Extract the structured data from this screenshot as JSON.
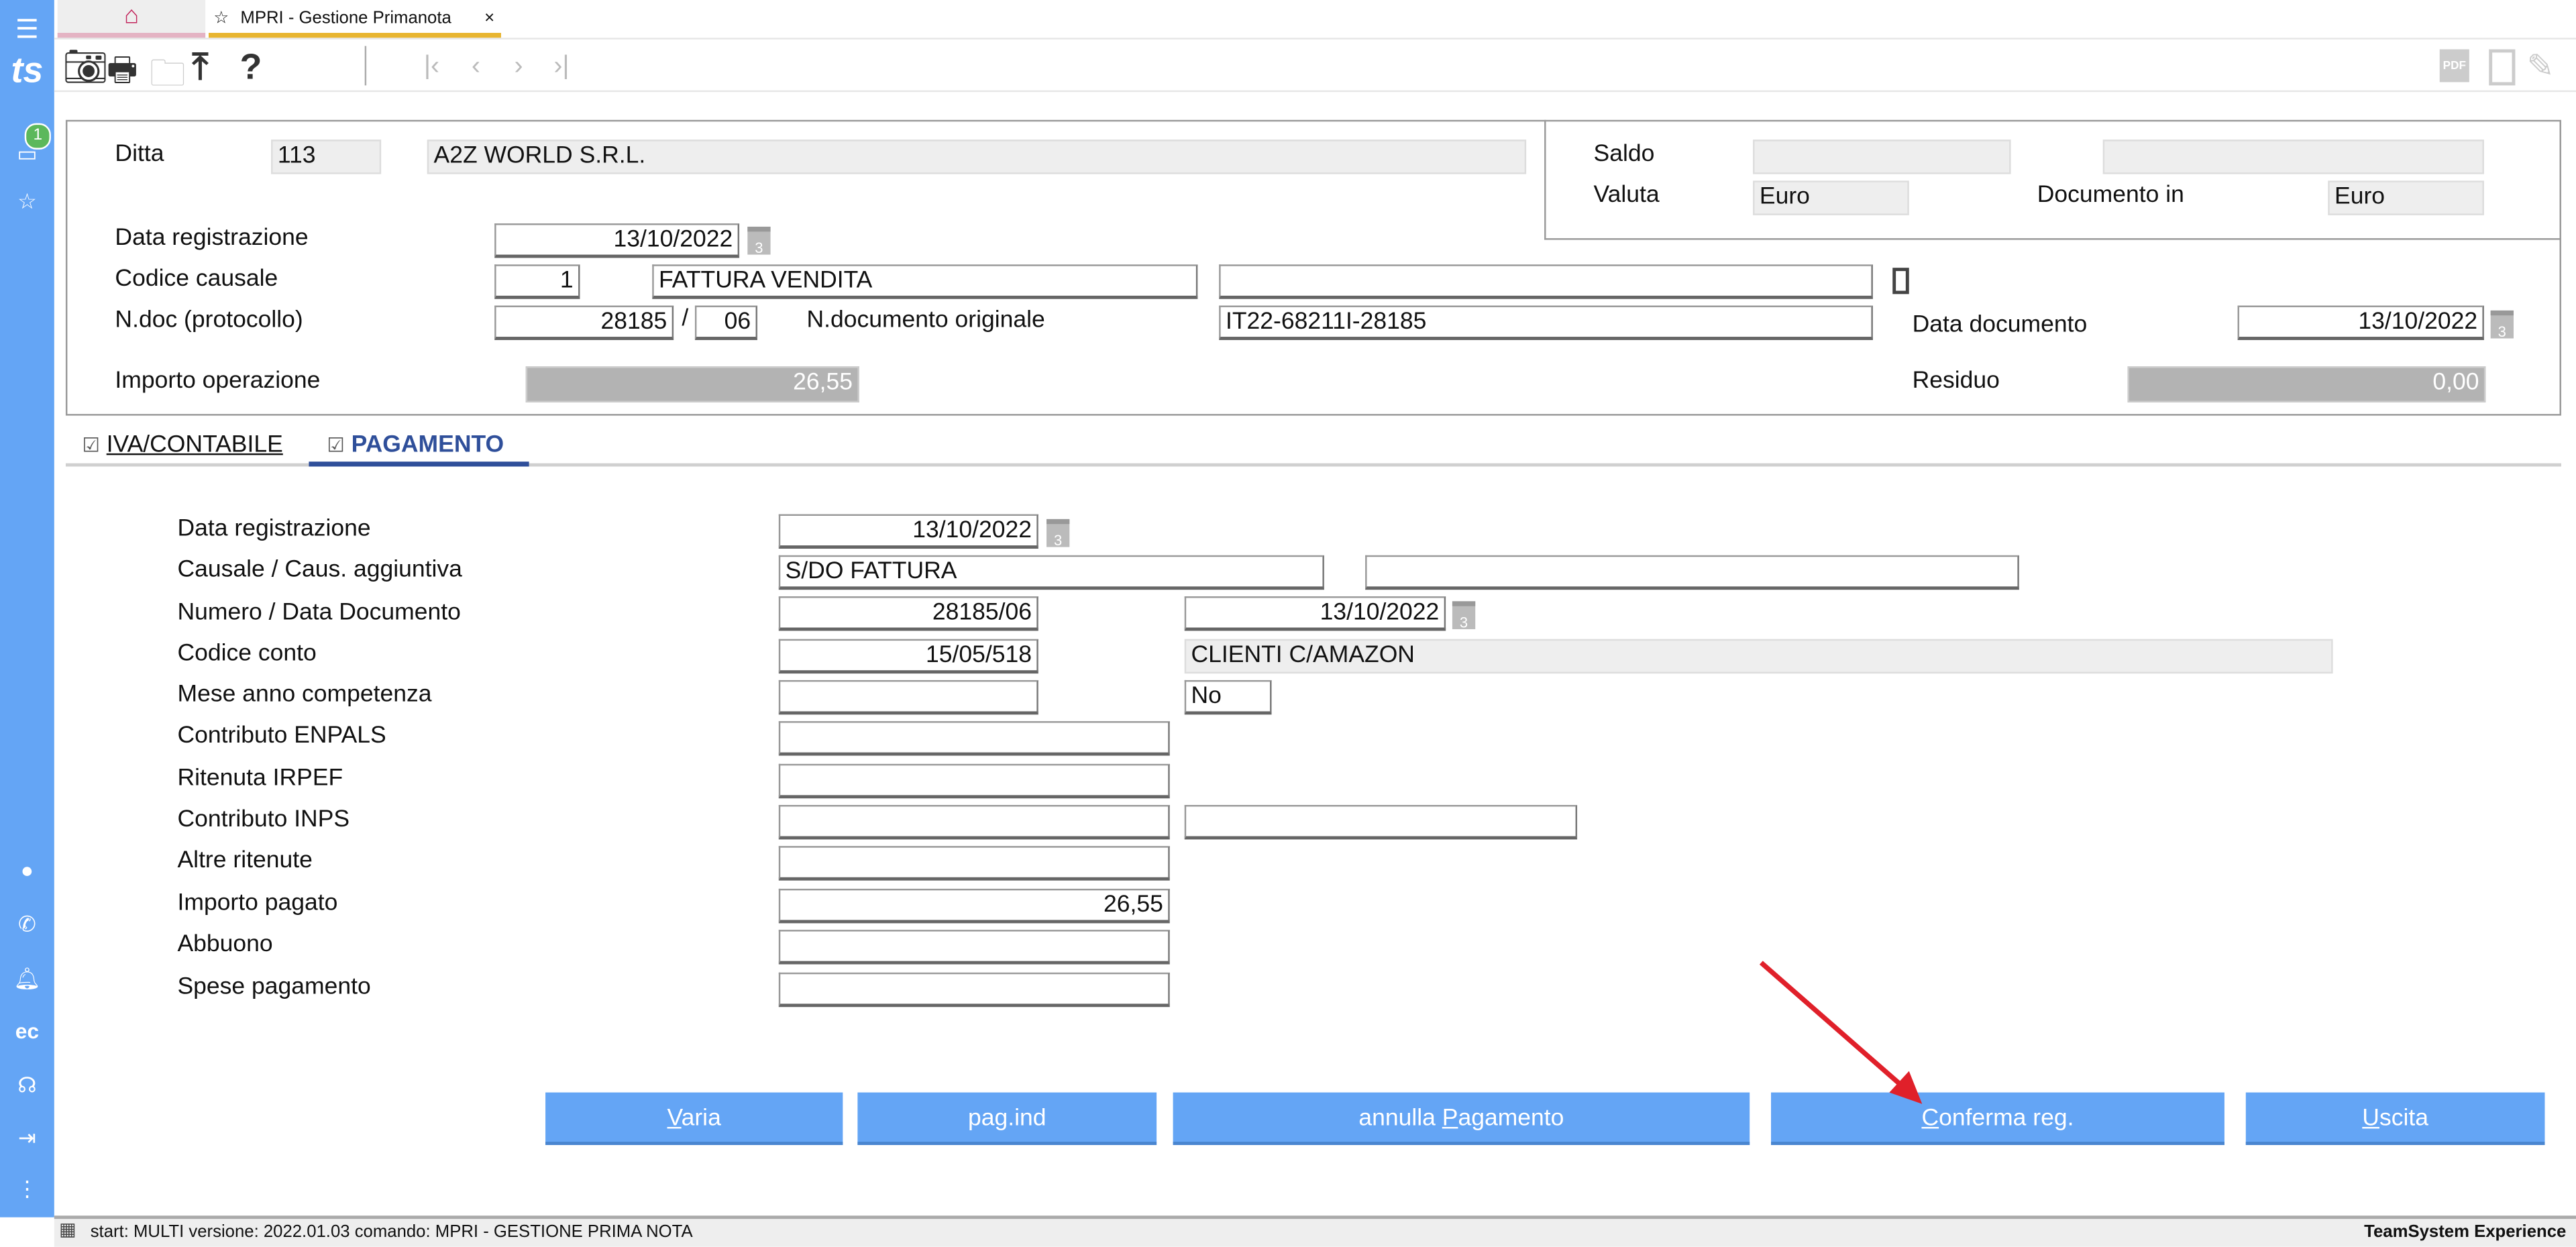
{
  "tabs": {
    "home_icon": "home-icon",
    "active": "MPRI - Gestione Primanota",
    "close": "×"
  },
  "sidebar": {
    "badge": "1",
    "icons": [
      "menu-icon",
      "ts-logo",
      "folder-icon",
      "star-icon",
      "user-icon",
      "phone-icon",
      "bell-icon",
      "ec-icon",
      "headset-icon",
      "logout-icon",
      "more-icon"
    ]
  },
  "header": {
    "ditta_label": "Ditta",
    "ditta_code": "113",
    "ditta_name": "A2Z WORLD S.R.L.",
    "saldo_label": "Saldo",
    "valuta_label": "Valuta",
    "valuta": "Euro",
    "documento_in_label": "Documento in",
    "documento_in": "Euro",
    "data_reg_label": "Data registrazione",
    "data_reg": "13/10/2022",
    "causale_label": "Codice causale",
    "causale_code": "1",
    "causale_desc": "FATTURA VENDITA",
    "ndoc_label": "N.doc (protocollo)",
    "ndoc": "28185",
    "slash": "/",
    "ndoc_suffix": "06",
    "ndoc_orig_label": "N.documento originale",
    "ndoc_orig": "IT22-68211I-28185",
    "data_doc_label": "Data documento",
    "data_doc": "13/10/2022",
    "importo_label": "Importo operazione",
    "importo": "26,55",
    "residuo_label": "Residuo",
    "residuo": "0,00",
    "cal_day": "3"
  },
  "section_tabs": [
    {
      "label": "IVA/CONTABILE",
      "checked": true
    },
    {
      "label": "PAGAMENTO",
      "checked": true,
      "active": true
    }
  ],
  "pagamento": {
    "labels": [
      "Data registrazione",
      "Causale / Caus. aggiuntiva",
      "Numero / Data Documento",
      "Codice conto",
      "Mese anno competenza",
      "Contributo ENPALS",
      "Ritenuta IRPEF",
      "Contributo INPS",
      "Altre ritenute",
      "Importo pagato",
      "Abbuono",
      "Spese pagamento"
    ],
    "data_reg": "13/10/2022",
    "causale": "S/DO FATTURA",
    "numero": "28185/06",
    "data_doc": "13/10/2022",
    "codice_conto": "15/05/518",
    "conto_desc": "CLIENTI C/AMAZON",
    "mese_flag": "No",
    "importo_pagato": "26,55"
  },
  "buttons": [
    {
      "pre": "",
      "u": "V",
      "post": "aria"
    },
    {
      "pre": "pag.ind",
      "u": "",
      "post": ""
    },
    {
      "pre": "annulla ",
      "u": "P",
      "post": "agamento"
    },
    {
      "pre": "",
      "u": "C",
      "post": "onferma reg."
    },
    {
      "pre": "",
      "u": "U",
      "post": "scita"
    }
  ],
  "status": {
    "text": "start: MULTI versione: 2022.01.03 comando: MPRI - GESTIONE PRIMA NOTA",
    "brand": "TeamSystem Experience"
  },
  "colors": {
    "accent": "#64a5f5",
    "tab_active": "#2f4f9a",
    "home": "#c2255c",
    "arrow": "#e0202a"
  }
}
